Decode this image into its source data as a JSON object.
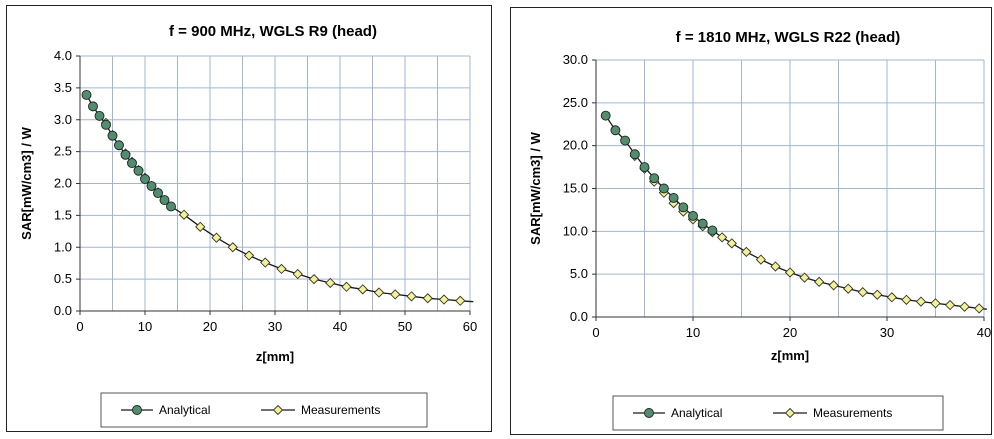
{
  "chart_data": [
    {
      "type": "line",
      "title": "f = 900 MHz, WGLS R9 (head)",
      "xlabel": "z[mm]",
      "ylabel": "SAR[mW/cm3] / W",
      "xlim": [
        0,
        60
      ],
      "ylim": [
        0,
        4
      ],
      "xticks": [
        "0",
        "10",
        "20",
        "30",
        "40",
        "50",
        "60"
      ],
      "yticks": [
        "0.0",
        "0.5",
        "1.0",
        "1.5",
        "2.0",
        "2.5",
        "3.0",
        "3.5",
        "4.0"
      ],
      "grid": true,
      "legend_position": "bottom",
      "series": [
        {
          "name": "Analytical",
          "color": "#4f8f6e",
          "marker": "circle",
          "x": [
            1,
            2,
            3,
            4,
            5,
            6,
            7,
            8,
            9,
            10,
            11,
            12,
            13,
            14
          ],
          "y": [
            3.39,
            3.21,
            3.06,
            2.92,
            2.75,
            2.6,
            2.45,
            2.32,
            2.2,
            2.07,
            1.96,
            1.85,
            1.74,
            1.64
          ]
        },
        {
          "name": "Measurements",
          "color": "#f4f28c",
          "marker": "diamond",
          "x": [
            4,
            5,
            6,
            7,
            8,
            9,
            10,
            11,
            12,
            13,
            16,
            18.5,
            21,
            23.5,
            26,
            28.5,
            31,
            33.5,
            36,
            38.5,
            41,
            43.5,
            46,
            48.5,
            51,
            53.5,
            56,
            58.5
          ],
          "y": [
            2.95,
            2.76,
            2.6,
            2.47,
            2.34,
            2.21,
            2.09,
            1.96,
            1.86,
            1.74,
            1.51,
            1.32,
            1.15,
            1.0,
            0.87,
            0.76,
            0.66,
            0.58,
            0.5,
            0.44,
            0.38,
            0.34,
            0.29,
            0.26,
            0.23,
            0.2,
            0.18,
            0.16
          ]
        }
      ]
    },
    {
      "type": "line",
      "title": "f = 1810 MHz, WGLS R22 (head)",
      "xlabel": "z[mm]",
      "ylabel": "SAR[mW/cm3] / W",
      "xlim": [
        0,
        40
      ],
      "ylim": [
        0,
        30
      ],
      "xticks": [
        "0",
        "10",
        "20",
        "30",
        "40"
      ],
      "yticks": [
        "0.0",
        "5.0",
        "10.0",
        "15.0",
        "20.0",
        "25.0",
        "30.0"
      ],
      "grid": true,
      "legend_position": "bottom",
      "series": [
        {
          "name": "Analytical",
          "color": "#4f8f6e",
          "marker": "circle",
          "x": [
            1,
            2,
            3,
            4,
            5,
            6,
            7,
            8,
            9,
            10,
            11,
            12
          ],
          "y": [
            23.5,
            21.8,
            20.6,
            19.0,
            17.5,
            16.2,
            15.0,
            13.9,
            12.8,
            11.8,
            10.9,
            10.1
          ]
        },
        {
          "name": "Measurements",
          "color": "#f4f28c",
          "marker": "diamond",
          "x": [
            4,
            5,
            6,
            7,
            8,
            9,
            10,
            11,
            12,
            13,
            14,
            15.5,
            17,
            18.5,
            20,
            21.5,
            23,
            24.5,
            26,
            27.5,
            29,
            30.5,
            32,
            33.5,
            35,
            36.5,
            38,
            39.5
          ],
          "y": [
            18.8,
            17.3,
            15.8,
            14.5,
            13.3,
            12.3,
            11.4,
            10.6,
            9.9,
            9.3,
            8.6,
            7.6,
            6.7,
            5.9,
            5.2,
            4.6,
            4.1,
            3.7,
            3.3,
            2.9,
            2.6,
            2.3,
            2.0,
            1.8,
            1.6,
            1.4,
            1.2,
            1.0
          ]
        }
      ]
    }
  ]
}
